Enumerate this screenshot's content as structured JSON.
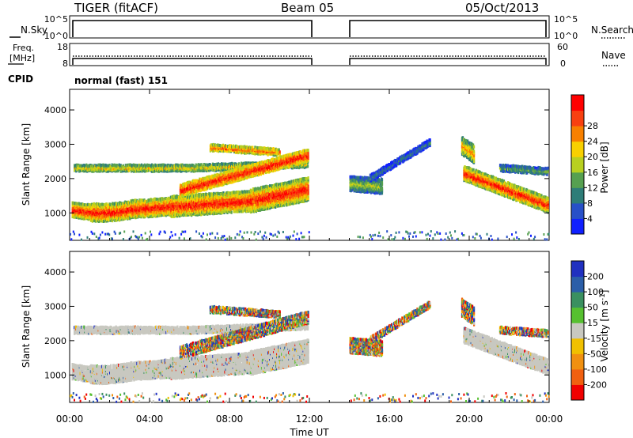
{
  "header": {
    "site": "TIGER (fitACF)",
    "beam": "Beam 05",
    "date": "05/Oct/2013",
    "cpid_label": "CPID",
    "cpid_value": "normal (fast) 151"
  },
  "summary_panels": {
    "nsky": {
      "left_label": "N.Sky",
      "right_label": "N.Search",
      "left_ticks": [
        "10^5",
        "10^0"
      ],
      "right_ticks": [
        "10^5",
        "10^0"
      ]
    },
    "freq": {
      "left_label_1": "Freq.",
      "left_label_2": "[MHz]",
      "right_label": "Nave",
      "left_ticks": [
        "18",
        "8"
      ],
      "right_ticks": [
        "60",
        "0"
      ]
    }
  },
  "chart_data": [
    {
      "type": "heatmap",
      "name": "power",
      "ylabel": "Slant Range [km]",
      "ylim": [
        200,
        4600
      ],
      "y_ticks": [
        1000,
        2000,
        3000,
        4000
      ],
      "xlim": [
        0,
        24
      ],
      "x_ticks": [
        "00:00",
        "04:00",
        "08:00",
        "12:00",
        "16:00",
        "20:00",
        "00:00"
      ],
      "data_gaps_hours": [
        [
          12.0,
          14.0
        ]
      ],
      "colorbar": {
        "label": "Power [dB]",
        "ticks": [
          "4",
          "8",
          "12",
          "16",
          "20",
          "24",
          "28"
        ],
        "colors": [
          "#1020ff",
          "#2850c8",
          "#2e7d78",
          "#56a050",
          "#b8d020",
          "#f8d000",
          "#f88000",
          "#f84010",
          "#ff0000"
        ]
      }
    },
    {
      "type": "heatmap",
      "name": "velocity",
      "ylabel": "Slant Range [km]",
      "ylim": [
        200,
        4600
      ],
      "y_ticks": [
        1000,
        2000,
        3000,
        4000
      ],
      "xlim": [
        0,
        24
      ],
      "x_ticks": [
        "00:00",
        "04:00",
        "08:00",
        "12:00",
        "16:00",
        "20:00",
        "00:00"
      ],
      "xlabel": "Time UT",
      "data_gaps_hours": [
        [
          12.0,
          14.0
        ]
      ],
      "colorbar": {
        "label": "Velocity [m s^-1]",
        "ticks": [
          "200",
          "100",
          "50",
          "15",
          "-15",
          "-50",
          "-100",
          "-200"
        ],
        "colors": [
          "#2030c0",
          "#2b5ea8",
          "#3a9060",
          "#56c030",
          "#c8c8c0",
          "#f0c000",
          "#f09010",
          "#f06010",
          "#f00000"
        ],
        "ground_scatter_color": "#c8c8c0"
      }
    }
  ]
}
